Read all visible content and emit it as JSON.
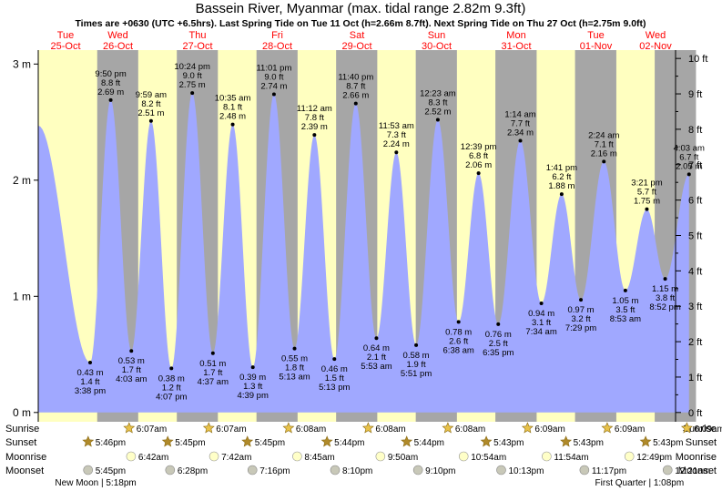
{
  "title": "Bassein River, Myanmar (max. tidal range 2.82m 9.3ft)",
  "subtitle": "Times are +0630 (UTC +6.5hrs). Last Spring Tide on Tue 11 Oct (h=2.66m 8.7ft). Next Spring Tide on Thu 27 Oct (h=2.75m 9.0ft)",
  "colors": {
    "day": "#ffffc0",
    "night": "#a6a6a6",
    "tide": "#a0a8ff",
    "weekend_label": "#ff0000"
  },
  "chart_data": {
    "type": "area",
    "days": [
      {
        "dow": "Tue",
        "date": "25-Oct"
      },
      {
        "dow": "Wed",
        "date": "26-Oct"
      },
      {
        "dow": "Thu",
        "date": "27-Oct"
      },
      {
        "dow": "Fri",
        "date": "28-Oct"
      },
      {
        "dow": "Sat",
        "date": "29-Oct"
      },
      {
        "dow": "Sun",
        "date": "30-Oct"
      },
      {
        "dow": "Mon",
        "date": "31-Oct"
      },
      {
        "dow": "Tue",
        "date": "01-Nov"
      },
      {
        "dow": "Wed",
        "date": "02-Nov"
      }
    ],
    "y_left_ticks": [
      {
        "v": 0,
        "label": "0 m"
      },
      {
        "v": 1,
        "label": "1 m"
      },
      {
        "v": 2,
        "label": "2 m"
      },
      {
        "v": 3,
        "label": "3 m"
      }
    ],
    "y_right_ticks": [
      "0 ft",
      "1 ft",
      "2 ft",
      "3 ft",
      "4 ft",
      "5 ft",
      "6 ft",
      "7 ft",
      "8 ft",
      "9 ft",
      "10 ft"
    ],
    "ylim_m": [
      -0.08,
      3.12
    ],
    "xlim_hours": [
      0,
      192
    ],
    "start_level_m": 2.47,
    "tides": [
      {
        "t": "3:38 pm",
        "h": 0.43,
        "m": "0.43 m",
        "f": "1.4 ft",
        "type": "low"
      },
      {
        "t": "9:50 pm",
        "h": 2.69,
        "m": "2.69 m",
        "f": "8.8 ft",
        "type": "high"
      },
      {
        "t": "4:03 am",
        "h": 0.53,
        "m": "0.53 m",
        "f": "1.7 ft",
        "type": "low"
      },
      {
        "t": "9:59 am",
        "h": 2.51,
        "m": "2.51 m",
        "f": "8.2 ft",
        "type": "high"
      },
      {
        "t": "4:07 pm",
        "h": 0.38,
        "m": "0.38 m",
        "f": "1.2 ft",
        "type": "low"
      },
      {
        "t": "10:24 pm",
        "h": 2.75,
        "m": "2.75 m",
        "f": "9.0 ft",
        "type": "high"
      },
      {
        "t": "4:37 am",
        "h": 0.51,
        "m": "0.51 m",
        "f": "1.7 ft",
        "type": "low"
      },
      {
        "t": "10:35 am",
        "h": 2.48,
        "m": "2.48 m",
        "f": "8.1 ft",
        "type": "high"
      },
      {
        "t": "4:39 pm",
        "h": 0.39,
        "m": "0.39 m",
        "f": "1.3 ft",
        "type": "low"
      },
      {
        "t": "11:01 pm",
        "h": 2.74,
        "m": "2.74 m",
        "f": "9.0 ft",
        "type": "high"
      },
      {
        "t": "5:13 am",
        "h": 0.55,
        "m": "0.55 m",
        "f": "1.8 ft",
        "type": "low"
      },
      {
        "t": "11:12 am",
        "h": 2.39,
        "m": "2.39 m",
        "f": "7.8 ft",
        "type": "high"
      },
      {
        "t": "5:13 pm",
        "h": 0.46,
        "m": "0.46 m",
        "f": "1.5 ft",
        "type": "low"
      },
      {
        "t": "11:40 pm",
        "h": 2.66,
        "m": "2.66 m",
        "f": "8.7 ft",
        "type": "high"
      },
      {
        "t": "5:53 am",
        "h": 0.64,
        "m": "0.64 m",
        "f": "2.1 ft",
        "type": "low"
      },
      {
        "t": "11:53 am",
        "h": 2.24,
        "m": "2.24 m",
        "f": "7.3 ft",
        "type": "high"
      },
      {
        "t": "5:51 pm",
        "h": 0.58,
        "m": "0.58 m",
        "f": "1.9 ft",
        "type": "low"
      },
      {
        "t": "12:23 am",
        "h": 2.52,
        "m": "2.52 m",
        "f": "8.3 ft",
        "type": "high"
      },
      {
        "t": "6:38 am",
        "h": 0.78,
        "m": "0.78 m",
        "f": "2.6 ft",
        "type": "low"
      },
      {
        "t": "12:39 pm",
        "h": 2.06,
        "m": "2.06 m",
        "f": "6.8 ft",
        "type": "high"
      },
      {
        "t": "6:35 pm",
        "h": 0.76,
        "m": "0.76 m",
        "f": "2.5 ft",
        "type": "low"
      },
      {
        "t": "1:14 am",
        "h": 2.34,
        "m": "2.34 m",
        "f": "7.7 ft",
        "type": "high"
      },
      {
        "t": "7:34 am",
        "h": 0.94,
        "m": "0.94 m",
        "f": "3.1 ft",
        "type": "low"
      },
      {
        "t": "1:41 pm",
        "h": 1.88,
        "m": "1.88 m",
        "f": "6.2 ft",
        "type": "high"
      },
      {
        "t": "7:29 pm",
        "h": 0.97,
        "m": "0.97 m",
        "f": "3.2 ft",
        "type": "low"
      },
      {
        "t": "2:24 am",
        "h": 2.16,
        "m": "2.16 m",
        "f": "7.1 ft",
        "type": "high"
      },
      {
        "t": "8:53 am",
        "h": 1.05,
        "m": "1.05 m",
        "f": "3.5 ft",
        "type": "low"
      },
      {
        "t": "3:21 pm",
        "h": 1.75,
        "m": "1.75 m",
        "f": "5.7 ft",
        "type": "high"
      },
      {
        "t": "8:52 pm",
        "h": 1.15,
        "m": "1.15 m",
        "f": "3.8 ft",
        "type": "low"
      },
      {
        "t": "4:03 am",
        "h": 2.05,
        "m": "2.05 m",
        "f": "6.7 ft",
        "type": "high"
      }
    ],
    "sunrise": [
      "6:07am",
      "6:07am",
      "6:08am",
      "6:08am",
      "6:08am",
      "6:09am",
      "6:09am",
      "6:09am"
    ],
    "sunset": [
      "5:46pm",
      "5:45pm",
      "5:45pm",
      "5:44pm",
      "5:44pm",
      "5:43pm",
      "5:43pm",
      "5:43pm"
    ],
    "moonrise": [
      "6:42am",
      "7:42am",
      "8:45am",
      "9:50am",
      "10:54am",
      "11:54am",
      "12:49pm"
    ],
    "moonset": [
      "5:45pm",
      "6:28pm",
      "7:16pm",
      "8:10pm",
      "9:10pm",
      "10:13pm",
      "11:17pm",
      "12:21am"
    ],
    "moon_phases": [
      {
        "label": "New Moon | 5:18pm",
        "day": 0,
        "time": "5:18pm"
      },
      {
        "label": "First Quarter | 1:08pm",
        "day": 7,
        "time": "1:08pm"
      }
    ],
    "row_labels": [
      "Sunrise",
      "Sunset",
      "Moonrise",
      "Moonset"
    ]
  }
}
